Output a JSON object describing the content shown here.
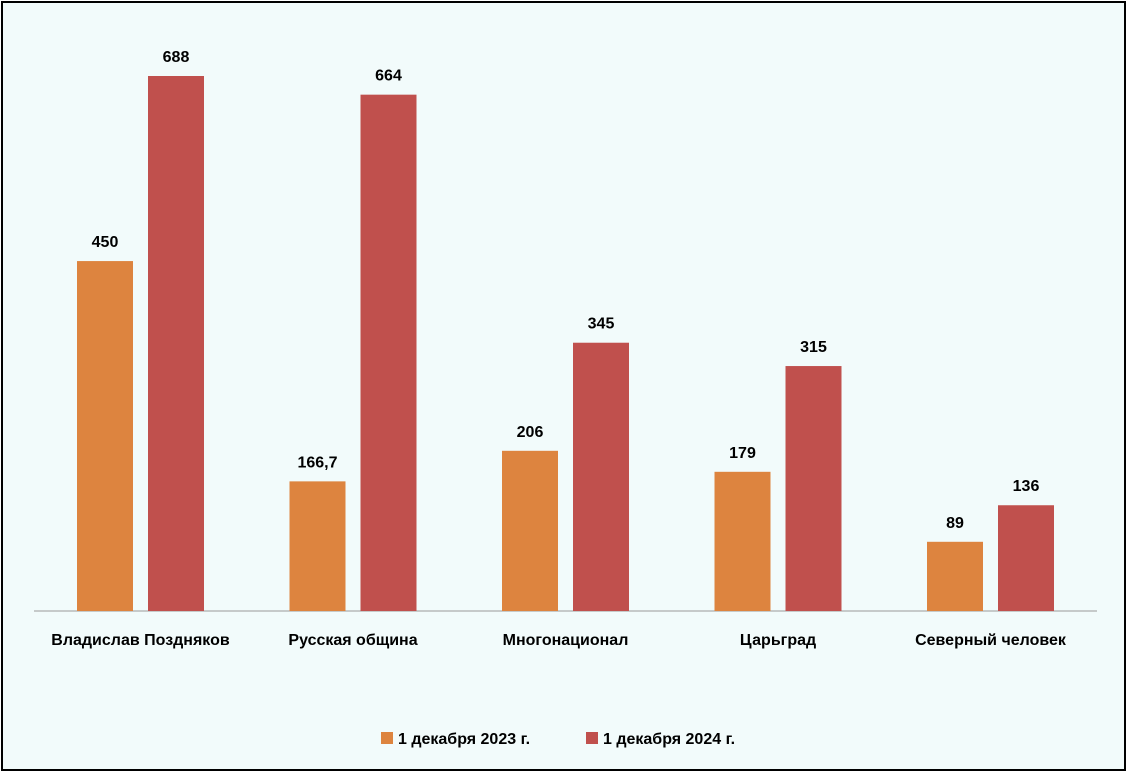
{
  "chart_data": {
    "type": "bar",
    "title": "",
    "xlabel": "",
    "ylabel": "",
    "ylim": [
      0,
      700
    ],
    "grid": false,
    "legend_position": "bottom",
    "categories": [
      "Владислав Поздняков",
      "Русская община",
      "Многонационал",
      "Царьград",
      "Северный человек"
    ],
    "series": [
      {
        "name": "1 декабря 2023 г.",
        "color": "#dd843f",
        "values": [
          450,
          166.7,
          206,
          179,
          89
        ],
        "labels": [
          "450",
          "166,7",
          "206",
          "179",
          "89"
        ]
      },
      {
        "name": "1 декабря 2024 г.",
        "color": "#c0504d",
        "values": [
          688,
          664,
          345,
          315,
          136
        ],
        "labels": [
          "688",
          "664",
          "345",
          "315",
          "136"
        ]
      }
    ]
  }
}
